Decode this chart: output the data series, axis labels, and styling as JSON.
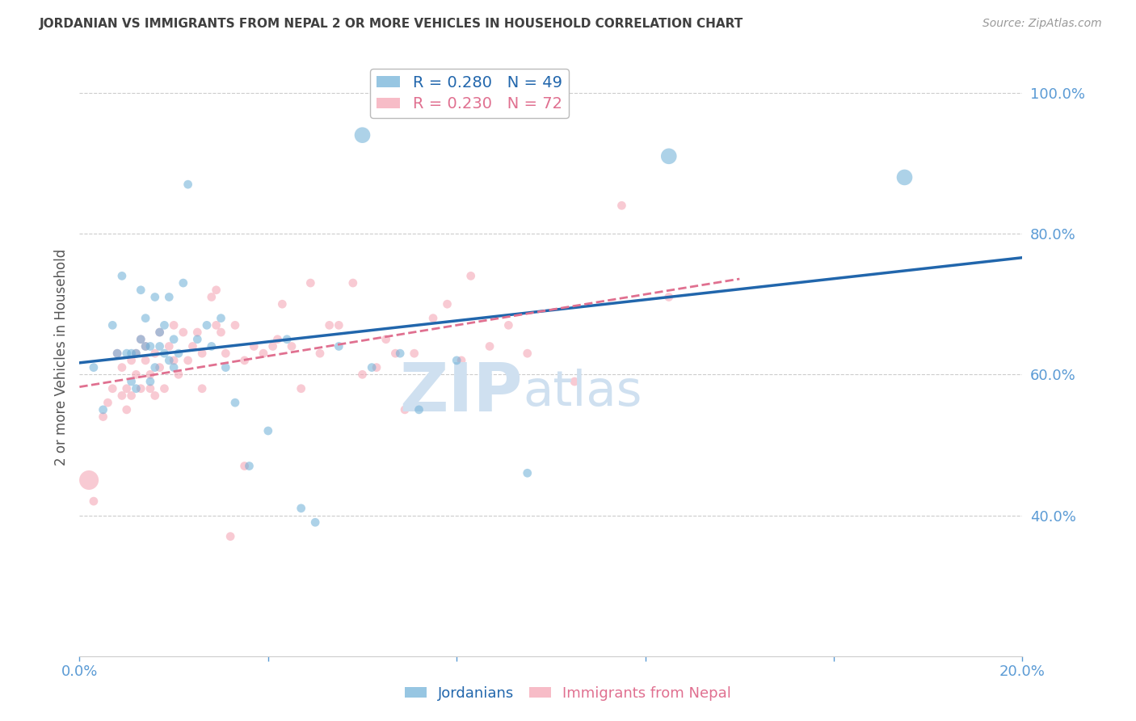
{
  "title": "JORDANIAN VS IMMIGRANTS FROM NEPAL 2 OR MORE VEHICLES IN HOUSEHOLD CORRELATION CHART",
  "source_text": "Source: ZipAtlas.com",
  "ylabel": "2 or more Vehicles in Household",
  "xlim": [
    0.0,
    0.2
  ],
  "ylim": [
    0.2,
    1.05
  ],
  "yticks": [
    0.4,
    0.6,
    0.8,
    1.0
  ],
  "ytick_labels": [
    "40.0%",
    "60.0%",
    "80.0%",
    "100.0%"
  ],
  "xticks": [
    0.0,
    0.04,
    0.08,
    0.12,
    0.16,
    0.2
  ],
  "xtick_labels": [
    "0.0%",
    "",
    "",
    "",
    "",
    "20.0%"
  ],
  "blue_R": 0.28,
  "blue_N": 49,
  "pink_R": 0.23,
  "pink_N": 72,
  "blue_color": "#6baed6",
  "pink_color": "#f4a0b0",
  "blue_line_color": "#2166ac",
  "pink_line_color": "#e07090",
  "axis_color": "#5b9bd5",
  "grid_color": "#cccccc",
  "title_color": "#404040",
  "watermark_color": "#cfe0f0",
  "legend_label_blue": "Jordanians",
  "legend_label_pink": "Immigrants from Nepal",
  "blue_x": [
    0.003,
    0.005,
    0.007,
    0.008,
    0.009,
    0.01,
    0.011,
    0.011,
    0.012,
    0.012,
    0.013,
    0.013,
    0.014,
    0.014,
    0.015,
    0.015,
    0.016,
    0.016,
    0.017,
    0.017,
    0.018,
    0.018,
    0.019,
    0.019,
    0.02,
    0.02,
    0.021,
    0.022,
    0.023,
    0.025,
    0.027,
    0.028,
    0.03,
    0.031,
    0.033,
    0.036,
    0.04,
    0.044,
    0.047,
    0.05,
    0.055,
    0.06,
    0.062,
    0.068,
    0.072,
    0.08,
    0.095,
    0.125,
    0.175
  ],
  "blue_y": [
    0.61,
    0.55,
    0.67,
    0.63,
    0.74,
    0.63,
    0.59,
    0.63,
    0.58,
    0.63,
    0.65,
    0.72,
    0.64,
    0.68,
    0.59,
    0.64,
    0.71,
    0.61,
    0.64,
    0.66,
    0.63,
    0.67,
    0.62,
    0.71,
    0.61,
    0.65,
    0.63,
    0.73,
    0.87,
    0.65,
    0.67,
    0.64,
    0.68,
    0.61,
    0.56,
    0.47,
    0.52,
    0.65,
    0.41,
    0.39,
    0.64,
    0.94,
    0.61,
    0.63,
    0.55,
    0.62,
    0.46,
    0.91,
    0.88
  ],
  "blue_sizes": [
    60,
    60,
    60,
    60,
    60,
    60,
    60,
    60,
    60,
    60,
    60,
    60,
    60,
    60,
    60,
    60,
    60,
    60,
    60,
    60,
    60,
    60,
    60,
    60,
    60,
    60,
    60,
    60,
    60,
    60,
    60,
    60,
    60,
    60,
    60,
    60,
    60,
    60,
    60,
    60,
    60,
    200,
    60,
    60,
    60,
    60,
    60,
    200,
    200
  ],
  "pink_x": [
    0.002,
    0.003,
    0.005,
    0.006,
    0.007,
    0.008,
    0.009,
    0.009,
    0.01,
    0.01,
    0.011,
    0.011,
    0.012,
    0.012,
    0.013,
    0.013,
    0.014,
    0.014,
    0.015,
    0.015,
    0.016,
    0.016,
    0.017,
    0.017,
    0.018,
    0.019,
    0.02,
    0.02,
    0.021,
    0.022,
    0.023,
    0.024,
    0.025,
    0.026,
    0.026,
    0.028,
    0.029,
    0.029,
    0.03,
    0.031,
    0.032,
    0.033,
    0.035,
    0.035,
    0.037,
    0.039,
    0.041,
    0.042,
    0.043,
    0.045,
    0.047,
    0.049,
    0.051,
    0.053,
    0.055,
    0.058,
    0.06,
    0.063,
    0.065,
    0.067,
    0.069,
    0.071,
    0.075,
    0.078,
    0.081,
    0.083,
    0.087,
    0.091,
    0.095,
    0.105,
    0.115,
    0.125
  ],
  "pink_y": [
    0.45,
    0.42,
    0.54,
    0.56,
    0.58,
    0.63,
    0.57,
    0.61,
    0.55,
    0.58,
    0.62,
    0.57,
    0.63,
    0.6,
    0.65,
    0.58,
    0.64,
    0.62,
    0.58,
    0.6,
    0.63,
    0.57,
    0.61,
    0.66,
    0.58,
    0.64,
    0.62,
    0.67,
    0.6,
    0.66,
    0.62,
    0.64,
    0.66,
    0.58,
    0.63,
    0.71,
    0.67,
    0.72,
    0.66,
    0.63,
    0.37,
    0.67,
    0.47,
    0.62,
    0.64,
    0.63,
    0.64,
    0.65,
    0.7,
    0.64,
    0.58,
    0.73,
    0.63,
    0.67,
    0.67,
    0.73,
    0.6,
    0.61,
    0.65,
    0.63,
    0.55,
    0.63,
    0.68,
    0.7,
    0.62,
    0.74,
    0.64,
    0.67,
    0.63,
    0.59,
    0.84,
    0.71
  ],
  "pink_sizes": [
    300,
    60,
    60,
    60,
    60,
    60,
    60,
    60,
    60,
    60,
    60,
    60,
    60,
    60,
    60,
    60,
    60,
    60,
    60,
    60,
    60,
    60,
    60,
    60,
    60,
    60,
    60,
    60,
    60,
    60,
    60,
    60,
    60,
    60,
    60,
    60,
    60,
    60,
    60,
    60,
    60,
    60,
    60,
    60,
    60,
    60,
    60,
    60,
    60,
    60,
    60,
    60,
    60,
    60,
    60,
    60,
    60,
    60,
    60,
    60,
    60,
    60,
    60,
    60,
    60,
    60,
    60,
    60,
    60,
    60,
    60,
    60
  ]
}
